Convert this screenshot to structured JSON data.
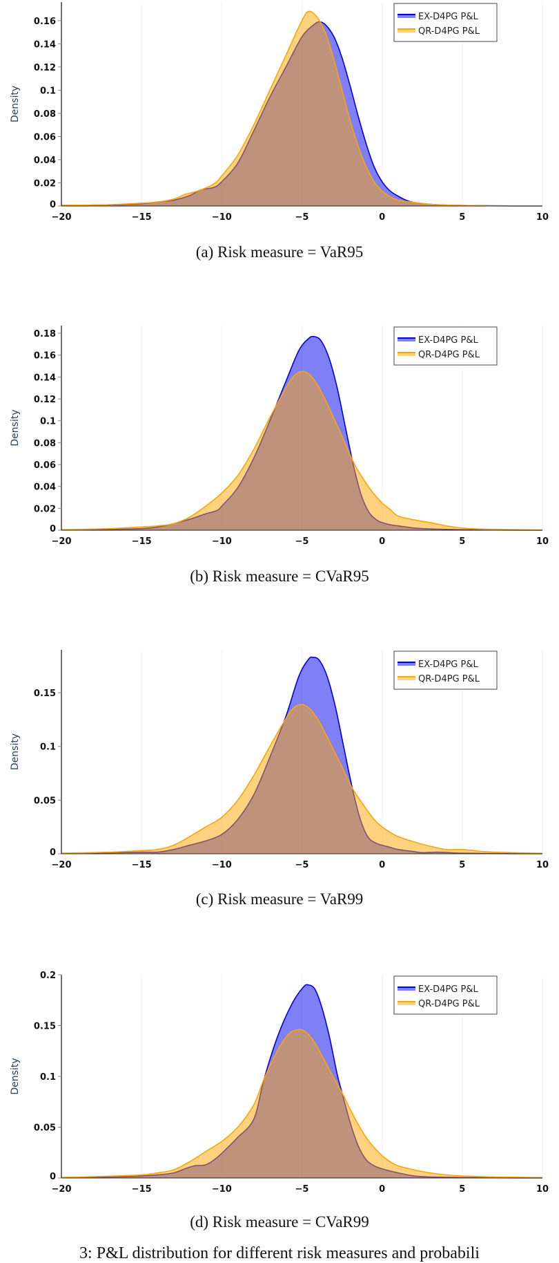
{
  "chart_data": [
    {
      "type": "area",
      "id": "a",
      "caption": "(a) Risk measure = VaR95",
      "title": "",
      "xlabel": "",
      "ylabel": "Density",
      "xlim": [
        -20,
        10
      ],
      "ylim": [
        0,
        0.176
      ],
      "xticks": [
        -20,
        -15,
        -10,
        -5,
        0,
        5,
        10
      ],
      "xtick_labels": [
        "−20",
        "−15",
        "−10",
        "−5",
        "0",
        "5",
        "10"
      ],
      "yticks": [
        0,
        0.02,
        0.04,
        0.06,
        0.08,
        0.1,
        0.12,
        0.14,
        0.16
      ],
      "ytick_labels": [
        "0",
        "0.02",
        "0.04",
        "0.06",
        "0.08",
        "0.1",
        "0.12",
        "0.14",
        "0.16"
      ],
      "grid": "vertical",
      "legend": "top-right",
      "series": [
        {
          "name": "EX-D4PG P&L",
          "color": "#0000ee",
          "x": [
            -20,
            -17,
            -15,
            -14,
            -13,
            -12,
            -11.3,
            -10.5,
            -10,
            -9,
            -8,
            -7,
            -6,
            -5,
            -4.3,
            -3.9,
            -3.5,
            -3,
            -2.5,
            -2,
            -1.5,
            -1,
            -0.5,
            0,
            0.5,
            1,
            1.5,
            2,
            3,
            4,
            5,
            7,
            10
          ],
          "y": [
            0.0005,
            0.001,
            0.002,
            0.0035,
            0.005,
            0.009,
            0.014,
            0.016,
            0.021,
            0.037,
            0.065,
            0.094,
            0.12,
            0.146,
            0.156,
            0.159,
            0.156,
            0.146,
            0.128,
            0.104,
            0.078,
            0.054,
            0.034,
            0.021,
            0.013,
            0.0085,
            0.005,
            0.003,
            0.0015,
            0.0008,
            0.0005,
            0.0002,
            0.0001
          ]
        },
        {
          "name": "QR-D4PG P&L",
          "color": "#ffa500",
          "x": [
            -20,
            -17,
            -15,
            -14,
            -13,
            -12.3,
            -11.5,
            -10.5,
            -10,
            -9,
            -8,
            -7,
            -6,
            -5,
            -4.55,
            -4,
            -3.5,
            -3,
            -2.5,
            -2,
            -1.5,
            -1,
            -0.5,
            0,
            0.5,
            1,
            1.5,
            2,
            3,
            4,
            5,
            7,
            10
          ],
          "y": [
            0.0005,
            0.0012,
            0.0025,
            0.0035,
            0.006,
            0.01,
            0.013,
            0.019,
            0.026,
            0.044,
            0.07,
            0.1,
            0.13,
            0.16,
            0.168,
            0.162,
            0.148,
            0.126,
            0.1,
            0.074,
            0.052,
            0.034,
            0.021,
            0.013,
            0.008,
            0.005,
            0.004,
            0.003,
            0.0015,
            0.0008,
            0.0005,
            0.0002,
            0.0001
          ]
        }
      ]
    },
    {
      "type": "area",
      "id": "b",
      "caption": "(b) Risk measure = CVaR95",
      "title": "",
      "xlabel": "",
      "ylabel": "Density",
      "xlim": [
        -20,
        10
      ],
      "ylim": [
        0,
        0.187
      ],
      "xticks": [
        -20,
        -15,
        -10,
        -5,
        0,
        5,
        10
      ],
      "xtick_labels": [
        "−20",
        "−15",
        "−10",
        "−5",
        "0",
        "5",
        "10"
      ],
      "yticks": [
        0,
        0.02,
        0.04,
        0.06,
        0.08,
        0.1,
        0.12,
        0.14,
        0.16,
        0.18
      ],
      "ytick_labels": [
        "0",
        "0.02",
        "0.04",
        "0.06",
        "0.08",
        "0.1",
        "0.12",
        "0.14",
        "0.16",
        "0.18"
      ],
      "grid": "vertical",
      "legend": "top-right",
      "series": [
        {
          "name": "EX-D4PG P&L",
          "color": "#0000ee",
          "x": [
            -20,
            -17,
            -15,
            -14,
            -13,
            -12,
            -11,
            -10.3,
            -10,
            -9,
            -8,
            -7,
            -6,
            -5.2,
            -4.6,
            -4.24,
            -3.8,
            -3.3,
            -2.8,
            -2.3,
            -1.8,
            -1.3,
            -0.8,
            -0.3,
            0,
            0.5,
            1,
            2,
            3,
            4,
            5,
            7,
            10
          ],
          "y": [
            0.0003,
            0.0008,
            0.0015,
            0.003,
            0.006,
            0.01,
            0.015,
            0.018,
            0.022,
            0.039,
            0.066,
            0.1,
            0.136,
            0.164,
            0.175,
            0.177,
            0.173,
            0.157,
            0.13,
            0.095,
            0.06,
            0.032,
            0.016,
            0.009,
            0.007,
            0.005,
            0.004,
            0.002,
            0.0012,
            0.0008,
            0.0005,
            0.0002,
            0.0001
          ]
        },
        {
          "name": "QR-D4PG P&L",
          "color": "#ffa500",
          "x": [
            -20,
            -17,
            -15,
            -14,
            -13,
            -12,
            -11,
            -10,
            -9,
            -8,
            -7,
            -6,
            -5.5,
            -5.0,
            -4.5,
            -4,
            -3.5,
            -3,
            -2.5,
            -2,
            -1.6,
            -1,
            -0.5,
            0,
            0.5,
            1,
            2,
            3,
            4,
            5,
            6,
            7,
            10
          ],
          "y": [
            0.0005,
            0.0015,
            0.003,
            0.004,
            0.006,
            0.012,
            0.022,
            0.034,
            0.05,
            0.074,
            0.103,
            0.13,
            0.141,
            0.145,
            0.142,
            0.132,
            0.118,
            0.102,
            0.086,
            0.069,
            0.057,
            0.043,
            0.033,
            0.025,
            0.019,
            0.013,
            0.0095,
            0.007,
            0.004,
            0.002,
            0.0012,
            0.0008,
            0.0002
          ]
        }
      ]
    },
    {
      "type": "area",
      "id": "c",
      "caption": "(c) Risk measure = VaR99",
      "title": "",
      "xlabel": "",
      "ylabel": "Density",
      "xlim": [
        -20,
        10
      ],
      "ylim": [
        0,
        0.19
      ],
      "xticks": [
        -20,
        -15,
        -10,
        -5,
        0,
        5,
        10
      ],
      "xtick_labels": [
        "−20",
        "−15",
        "−10",
        "−5",
        "0",
        "5",
        "10"
      ],
      "yticks": [
        0,
        0.05,
        0.1,
        0.15
      ],
      "ytick_labels": [
        "0",
        "0.05",
        "0.1",
        "0.15"
      ],
      "grid": "vertical",
      "legend": "top-right",
      "series": [
        {
          "name": "EX-D4PG P&L",
          "color": "#0000ee",
          "x": [
            -20,
            -17,
            -15,
            -14,
            -13,
            -12,
            -11,
            -10,
            -9,
            -8,
            -7,
            -6,
            -5.2,
            -4.6,
            -4.3,
            -3.9,
            -3.4,
            -2.9,
            -2.4,
            -1.9,
            -1.4,
            -0.9,
            -0.4,
            0,
            0.5,
            1,
            2,
            2.5,
            3.5,
            4.5,
            5,
            7,
            10
          ],
          "y": [
            0.0003,
            0.0008,
            0.0015,
            0.0015,
            0.004,
            0.008,
            0.012,
            0.018,
            0.032,
            0.055,
            0.09,
            0.128,
            0.165,
            0.181,
            0.183,
            0.18,
            0.164,
            0.136,
            0.1,
            0.064,
            0.034,
            0.016,
            0.01,
            0.008,
            0.006,
            0.004,
            0.002,
            0.001,
            0.0015,
            0.0008,
            0.0005,
            0.0002,
            0.0001
          ]
        },
        {
          "name": "QR-D4PG P&L",
          "color": "#ffa500",
          "x": [
            -20,
            -17,
            -15,
            -14,
            -13,
            -12,
            -11,
            -10,
            -9,
            -8,
            -7,
            -6,
            -5.5,
            -4.97,
            -4.5,
            -4,
            -3.5,
            -3,
            -2.5,
            -2,
            -1.6,
            -1,
            -0.5,
            0,
            0.5,
            1,
            2,
            3,
            4,
            5,
            6,
            7,
            10
          ],
          "y": [
            0.0005,
            0.0015,
            0.003,
            0.004,
            0.008,
            0.016,
            0.025,
            0.034,
            0.05,
            0.073,
            0.1,
            0.126,
            0.136,
            0.139,
            0.135,
            0.125,
            0.111,
            0.096,
            0.081,
            0.065,
            0.055,
            0.042,
            0.032,
            0.025,
            0.02,
            0.016,
            0.011,
            0.007,
            0.004,
            0.004,
            0.0025,
            0.0015,
            0.0004
          ]
        }
      ]
    },
    {
      "type": "area",
      "id": "d",
      "caption": "(d) Risk measure = CVaR99",
      "title": "",
      "xlabel": "",
      "ylabel": "Density",
      "xlim": [
        -20,
        10
      ],
      "ylim": [
        0,
        0.2
      ],
      "xticks": [
        -20,
        -15,
        -10,
        -5,
        0,
        5,
        10
      ],
      "xtick_labels": [
        "−20",
        "−15",
        "−10",
        "−5",
        "0",
        "5",
        "10"
      ],
      "yticks": [
        0,
        0.05,
        0.1,
        0.15,
        0.2
      ],
      "ytick_labels": [
        "0",
        "0.05",
        "0.1",
        "0.15",
        "0.2"
      ],
      "grid": "vertical",
      "legend": "top-right",
      "series": [
        {
          "name": "EX-D4PG P&L",
          "color": "#0000ee",
          "x": [
            -20,
            -17,
            -15,
            -14,
            -13,
            -12.3,
            -11.7,
            -11,
            -10.3,
            -9.5,
            -9,
            -8,
            -7.35,
            -6.5,
            -5.6,
            -4.9,
            -4.6,
            -4.2,
            -3.8,
            -3.3,
            -2.8,
            -2.5,
            -2,
            -1.5,
            -1,
            -0.5,
            0,
            1,
            2,
            3,
            5,
            7,
            10
          ],
          "y": [
            0.0005,
            0.001,
            0.002,
            0.003,
            0.005,
            0.009,
            0.012,
            0.013,
            0.02,
            0.032,
            0.04,
            0.058,
            0.098,
            0.14,
            0.172,
            0.188,
            0.19,
            0.186,
            0.17,
            0.14,
            0.102,
            0.084,
            0.055,
            0.032,
            0.018,
            0.012,
            0.009,
            0.005,
            0.002,
            0.001,
            0.0005,
            0.0002,
            0.0001
          ]
        },
        {
          "name": "QR-D4PG P&L",
          "color": "#ffa500",
          "x": [
            -20,
            -17,
            -15,
            -14,
            -13,
            -12,
            -11,
            -10,
            -9,
            -8,
            -7.35,
            -6.5,
            -5.8,
            -5.2,
            -4.7,
            -4.2,
            -3.6,
            -3,
            -2.5,
            -2,
            -1.5,
            -1,
            -0.5,
            0,
            0.5,
            1,
            2,
            3,
            4,
            5,
            6,
            7,
            10
          ],
          "y": [
            0.0005,
            0.0018,
            0.003,
            0.005,
            0.008,
            0.016,
            0.026,
            0.036,
            0.05,
            0.072,
            0.098,
            0.126,
            0.142,
            0.146,
            0.143,
            0.133,
            0.116,
            0.098,
            0.084,
            0.068,
            0.053,
            0.04,
            0.03,
            0.022,
            0.016,
            0.012,
            0.008,
            0.005,
            0.003,
            0.002,
            0.0015,
            0.001,
            0.0004
          ]
        }
      ]
    }
  ],
  "footer_caption": "3: P&L distribution for different risk measures and probabili"
}
